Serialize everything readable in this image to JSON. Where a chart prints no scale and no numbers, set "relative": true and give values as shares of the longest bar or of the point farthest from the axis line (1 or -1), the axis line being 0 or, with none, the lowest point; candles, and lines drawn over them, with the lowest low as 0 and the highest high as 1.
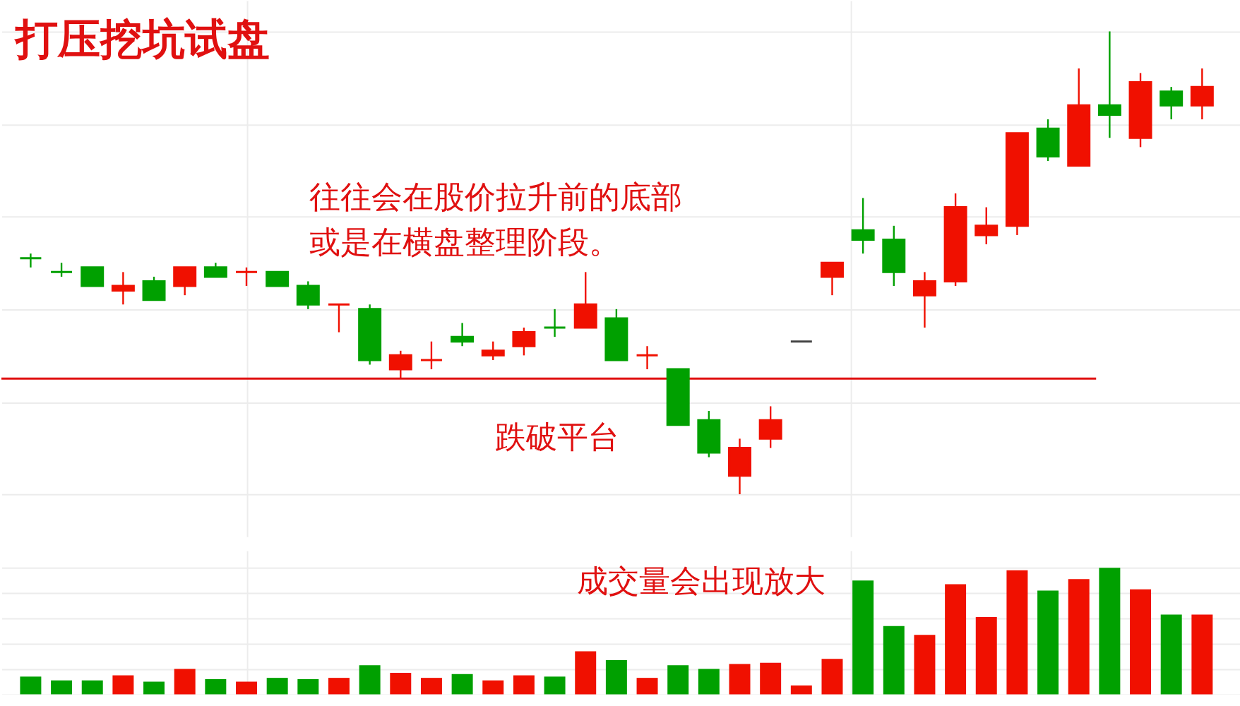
{
  "chart_data": [
    {
      "type": "candlestick",
      "title": "打压挖坑试盘",
      "relative": true,
      "grid": true,
      "categories": [
        null,
        null,
        null,
        null,
        null,
        null,
        null,
        null,
        null,
        null,
        null,
        null,
        null,
        null,
        null,
        null,
        null,
        null,
        null,
        null,
        null,
        null,
        null,
        null,
        null,
        null,
        null,
        null,
        null,
        null,
        null,
        null,
        null,
        null,
        null,
        null,
        null,
        null,
        null
      ],
      "ohlc": [
        [
          0.51,
          0.52,
          0.49,
          0.51
        ],
        [
          0.48,
          0.5,
          0.47,
          0.48
        ],
        [
          0.49,
          0.49,
          0.45,
          0.45
        ],
        [
          0.44,
          0.48,
          0.41,
          0.45
        ],
        [
          0.46,
          0.47,
          0.42,
          0.42
        ],
        [
          0.45,
          0.49,
          0.43,
          0.49
        ],
        [
          0.49,
          0.5,
          0.47,
          0.47
        ],
        [
          0.48,
          0.49,
          0.45,
          0.48
        ],
        [
          0.48,
          0.48,
          0.45,
          0.45
        ],
        [
          0.45,
          0.46,
          0.4,
          0.41
        ],
        [
          0.41,
          0.41,
          0.35,
          0.41
        ],
        [
          0.4,
          0.41,
          0.28,
          0.29
        ],
        [
          0.27,
          0.31,
          0.25,
          0.3
        ],
        [
          0.29,
          0.33,
          0.27,
          0.29
        ],
        [
          0.34,
          0.37,
          0.32,
          0.33
        ],
        [
          0.3,
          0.33,
          0.29,
          0.31
        ],
        [
          0.32,
          0.36,
          0.3,
          0.35
        ],
        [
          0.36,
          0.4,
          0.34,
          0.36
        ],
        [
          0.36,
          0.48,
          0.36,
          0.41
        ],
        [
          0.38,
          0.4,
          0.29,
          0.29
        ],
        [
          0.3,
          0.32,
          0.27,
          0.3
        ],
        [
          0.27,
          0.27,
          0.15,
          0.15
        ],
        [
          0.16,
          0.18,
          0.08,
          0.09
        ],
        [
          0.04,
          0.12,
          0,
          0.1
        ],
        [
          0.12,
          0.19,
          0.1,
          0.16
        ],
        [
          0.33,
          0.33,
          0.33,
          0.33
        ],
        [
          0.47,
          0.5,
          0.43,
          0.5
        ],
        [
          0.57,
          0.64,
          0.52,
          0.55
        ],
        [
          0.55,
          0.58,
          0.45,
          0.48
        ],
        [
          0.43,
          0.48,
          0.36,
          0.46
        ],
        [
          0.46,
          0.65,
          0.45,
          0.62
        ],
        [
          0.56,
          0.62,
          0.54,
          0.58
        ],
        [
          0.58,
          0.78,
          0.56,
          0.78
        ],
        [
          0.79,
          0.81,
          0.72,
          0.73
        ],
        [
          0.71,
          0.92,
          0.71,
          0.84
        ],
        [
          0.84,
          1,
          0.77,
          0.82
        ],
        [
          0.77,
          0.91,
          0.75,
          0.89
        ],
        [
          0.87,
          0.88,
          0.81,
          0.84
        ],
        [
          0.84,
          0.92,
          0.81,
          0.88
        ]
      ],
      "colors": [
        "#00a000",
        "#00a000",
        "#00a000",
        "#f01000",
        "#00a000",
        "#f01000",
        "#00a000",
        "#f01000",
        "#00a000",
        "#00a000",
        "#f01000",
        "#00a000",
        "#f01000",
        "#f01000",
        "#00a000",
        "#f01000",
        "#f01000",
        "#00a000",
        "#f01000",
        "#00a000",
        "#f01000",
        "#00a000",
        "#00a000",
        "#f01000",
        "#f01000",
        "#444444",
        "#f01000",
        "#00a000",
        "#00a000",
        "#f01000",
        "#f01000",
        "#f01000",
        "#f01000",
        "#00a000",
        "#f01000",
        "#00a000",
        "#f01000",
        "#00a000",
        "#f01000"
      ],
      "ref_lines": [
        {
          "axis": "y",
          "value": 0.25,
          "color": "#e01010"
        }
      ],
      "annotations": [
        "往往会在股价拉升前的底部",
        "或是在横盘整理阶段。",
        "跌破平台"
      ]
    },
    {
      "type": "bar",
      "relative": true,
      "grid": true,
      "categories": [
        null,
        null,
        null,
        null,
        null,
        null,
        null,
        null,
        null,
        null,
        null,
        null,
        null,
        null,
        null,
        null,
        null,
        null,
        null,
        null,
        null,
        null,
        null,
        null,
        null,
        null,
        null,
        null,
        null,
        null,
        null,
        null,
        null,
        null,
        null,
        null,
        null,
        null,
        null
      ],
      "values": [
        0.14,
        0.11,
        0.11,
        0.15,
        0.1,
        0.2,
        0.12,
        0.1,
        0.13,
        0.12,
        0.13,
        0.23,
        0.17,
        0.13,
        0.16,
        0.11,
        0.15,
        0.14,
        0.34,
        0.27,
        0.13,
        0.23,
        0.2,
        0.24,
        0.25,
        0.07,
        0.28,
        0.9,
        0.54,
        0.47,
        0.87,
        0.61,
        0.98,
        0.82,
        0.91,
        1,
        0.83,
        0.63,
        0.63
      ],
      "colors": [
        "#00a000",
        "#00a000",
        "#00a000",
        "#f01000",
        "#00a000",
        "#f01000",
        "#00a000",
        "#f01000",
        "#00a000",
        "#00a000",
        "#f01000",
        "#00a000",
        "#f01000",
        "#f01000",
        "#00a000",
        "#f01000",
        "#f01000",
        "#00a000",
        "#f01000",
        "#00a000",
        "#f01000",
        "#00a000",
        "#00a000",
        "#f01000",
        "#f01000",
        "#f01000",
        "#f01000",
        "#00a000",
        "#00a000",
        "#f01000",
        "#f01000",
        "#f01000",
        "#f01000",
        "#00a000",
        "#f01000",
        "#00a000",
        "#f01000",
        "#00a000",
        "#f01000"
      ],
      "annotations": [
        "成交量会出现放大"
      ]
    }
  ]
}
